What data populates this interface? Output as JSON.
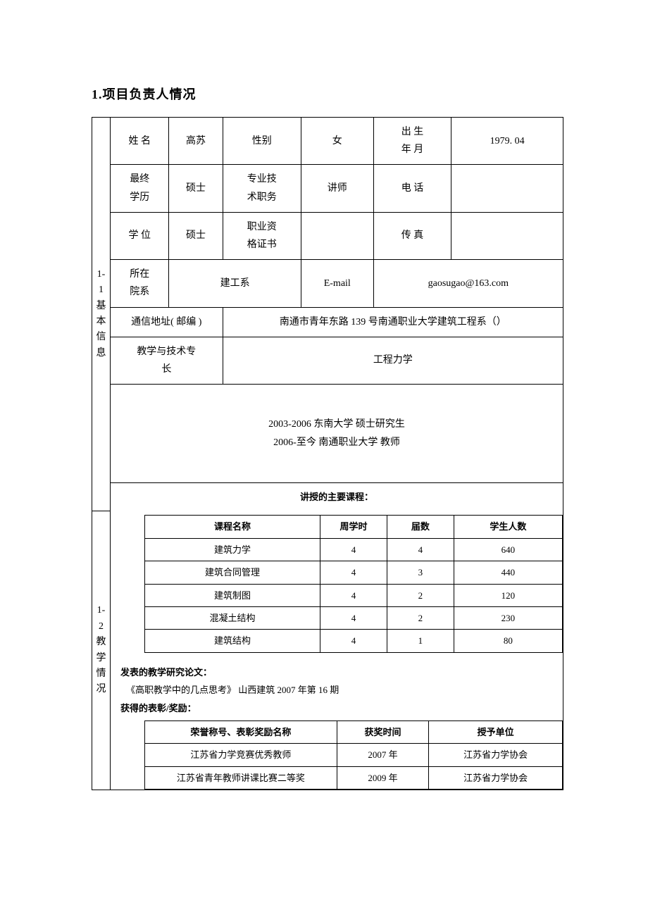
{
  "title": "1.项目负责人情况",
  "section1": {
    "label_num": "1-1",
    "label_chars": [
      "基",
      "本",
      "信",
      "息"
    ],
    "rows": {
      "name_label": "姓 名",
      "name": "高苏",
      "gender_label": "性别",
      "gender": "女",
      "birth_label_line1": "出 生",
      "birth_label_line2": "年 月",
      "birth": "1979. 04",
      "edu_label_line1": "最终",
      "edu_label_line2": "学历",
      "edu": "硕士",
      "proftitle_label_line1": "专业技",
      "proftitle_label_line2": "术职务",
      "proftitle": "讲师",
      "phone_label": "电 话",
      "phone": "",
      "degree_label": "学 位",
      "degree": "硕士",
      "cert_label_line1": "职业资",
      "cert_label_line2": "格证书",
      "cert": "",
      "fax_label": "传 真",
      "fax": "",
      "dept_label_line1": "所在",
      "dept_label_line2": "院系",
      "dept": "建工系",
      "email_label": "E-mail",
      "email": "gaosugao@163.com",
      "addr_label": "通信地址( 邮编 )",
      "addr": "南通市青年东路 139 号南通职业大学建筑工程系（）",
      "specialty_label_line1": "教学与技术专",
      "specialty_label_line2": "长",
      "specialty": "工程力学",
      "history_line1": "2003-2006 东南大学 硕士研究生",
      "history_line2": "2006-至今 南通职业大学 教师"
    }
  },
  "section2": {
    "label_num": "1-2",
    "label_chars": [
      "教",
      "学",
      "情",
      "况"
    ],
    "courses_heading": "讲授的主要课程：",
    "courses_table": {
      "columns": [
        "课程名称",
        "周学时",
        "届数",
        "学生人数"
      ],
      "col_widths": [
        "42%",
        "16%",
        "16%",
        "26%"
      ],
      "rows": [
        [
          "建筑力学",
          "4",
          "4",
          "640"
        ],
        [
          "建筑合同管理",
          "4",
          "3",
          "440"
        ],
        [
          "建筑制图",
          "4",
          "2",
          "120"
        ],
        [
          "混凝土结构",
          "4",
          "2",
          "230"
        ],
        [
          "建筑结构",
          "4",
          "1",
          "80"
        ]
      ]
    },
    "papers_heading": "发表的教学研究论文：",
    "papers": [
      "《高职教学中的几点思考》  山西建筑 2007 年第 16 期"
    ],
    "awards_heading": "获得的表彰/奖励：",
    "awards_table": {
      "columns": [
        "荣誉称号、表彰奖励名称",
        "获奖时间",
        "授予单位"
      ],
      "col_widths": [
        "46%",
        "22%",
        "32%"
      ],
      "rows": [
        [
          "江苏省力学竞赛优秀教师",
          "2007 年",
          "江苏省力学协会"
        ],
        [
          "江苏省青年教师讲课比赛二等奖",
          "2009 年",
          "江苏省力学协会"
        ]
      ]
    }
  },
  "colors": {
    "border": "#000000",
    "background": "#ffffff",
    "text": "#000000"
  }
}
